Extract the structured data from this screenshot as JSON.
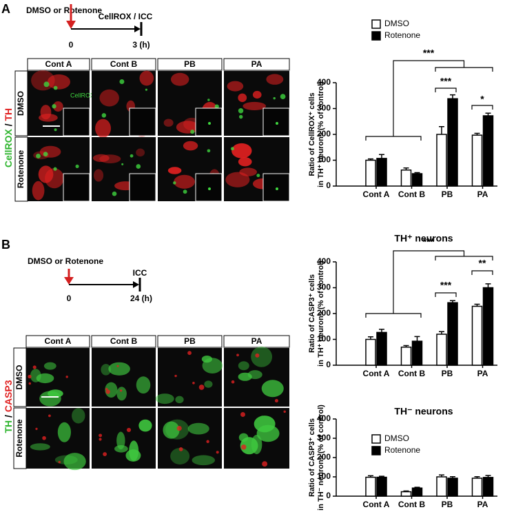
{
  "panel_a": {
    "label": "A",
    "timeline": {
      "treatment": "DMSO or Rotenone",
      "assay": "CellROX / ICC",
      "start": "0",
      "end": "3 (h)"
    },
    "images": {
      "columns": [
        "Cont A",
        "Cont B",
        "PB",
        "PA"
      ],
      "rows": [
        "DMSO",
        "Rotenone"
      ],
      "stain": [
        "CellROX",
        "/",
        "TH"
      ],
      "inset_label": "CellROX"
    }
  },
  "panel_b": {
    "label": "B",
    "timeline": {
      "treatment": "DMSO or Rotenone",
      "assay": "ICC",
      "start": "0",
      "end": "24 (h)"
    },
    "images": {
      "columns": [
        "Cont A",
        "Cont B",
        "PB",
        "PA"
      ],
      "rows": [
        "DMSO",
        "Rotenone"
      ],
      "stain": [
        "TH",
        "/",
        "CASP3"
      ]
    }
  },
  "chart_data": [
    {
      "type": "bar",
      "y_label": [
        "Ratio of CellROX⁺ cells",
        "in TH⁺ neurons (% of control)"
      ],
      "categories": [
        "Cont A",
        "Cont B",
        "PB",
        "PA"
      ],
      "series": [
        {
          "name": "DMSO",
          "color": "#ffffff",
          "values": [
            100,
            62,
            200,
            197
          ],
          "errors": [
            5,
            8,
            30,
            7
          ]
        },
        {
          "name": "Rotenone",
          "color": "#000000",
          "values": [
            107,
            48,
            338,
            272
          ],
          "errors": [
            15,
            4,
            15,
            10
          ]
        }
      ],
      "ylim": [
        0,
        400
      ],
      "yticks": [
        0,
        100,
        200,
        300,
        400
      ],
      "annotations": [
        "***",
        "***",
        "*"
      ]
    },
    {
      "type": "bar",
      "title": "TH⁺ neurons",
      "y_label": [
        "Ratio of CASP3⁺ cells",
        "in TH⁺ neurons (% of control)"
      ],
      "categories": [
        "Cont A",
        "Cont B",
        "PB",
        "PA"
      ],
      "series": [
        {
          "color": "#ffffff",
          "values": [
            100,
            70,
            120,
            228
          ],
          "errors": [
            10,
            6,
            10,
            8
          ]
        },
        {
          "color": "#000000",
          "values": [
            127,
            93,
            242,
            300
          ],
          "errors": [
            12,
            18,
            8,
            15
          ]
        }
      ],
      "ylim": [
        0,
        400
      ],
      "yticks": [
        0,
        100,
        200,
        300,
        400
      ],
      "annotations": [
        "***",
        "***",
        "**"
      ]
    },
    {
      "type": "bar",
      "title": "TH⁻ neurons",
      "y_label": [
        "Ratio of CASP3⁺ cells",
        "in TH⁻ neurons (% of control)"
      ],
      "categories": [
        "Cont A",
        "Cont B",
        "PB",
        "PA"
      ],
      "series": [
        {
          "name": "DMSO",
          "color": "#ffffff",
          "values": [
            98,
            23,
            100,
            93
          ],
          "errors": [
            8,
            4,
            10,
            8
          ]
        },
        {
          "name": "Rotenone",
          "color": "#000000",
          "values": [
            98,
            42,
            93,
            97
          ],
          "errors": [
            5,
            4,
            8,
            10
          ]
        }
      ],
      "ylim": [
        0,
        400
      ],
      "yticks": [
        0,
        100,
        200,
        300,
        400
      ]
    }
  ]
}
